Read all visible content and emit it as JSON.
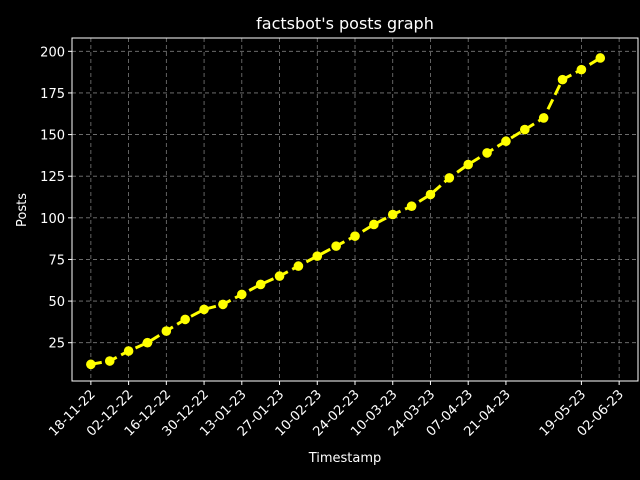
{
  "chart_data": {
    "type": "line",
    "title": "factsbot's posts graph",
    "xlabel": "Timestamp",
    "ylabel": "Posts",
    "grid": true,
    "x_ticks": [
      "18-11-22",
      "02-12-22",
      "16-12-22",
      "30-12-22",
      "13-01-23",
      "27-01-23",
      "10-02-23",
      "24-02-23",
      "10-03-23",
      "24-03-23",
      "07-04-23",
      "21-04-23",
      "19-05-23",
      "02-06-23"
    ],
    "x_range": [
      "2022-11-11",
      "2023-06-09"
    ],
    "ylim": [
      2,
      208
    ],
    "y_ticks": [
      25,
      50,
      75,
      100,
      125,
      150,
      175,
      200
    ],
    "series": [
      {
        "color": "#ffff00",
        "linestyle": "dashed",
        "marker": "circle",
        "points": [
          {
            "x": "2022-11-18",
            "y": 12
          },
          {
            "x": "2022-11-25",
            "y": 14
          },
          {
            "x": "2022-12-02",
            "y": 20
          },
          {
            "x": "2022-12-09",
            "y": 25
          },
          {
            "x": "2022-12-16",
            "y": 32
          },
          {
            "x": "2022-12-23",
            "y": 39
          },
          {
            "x": "2022-12-30",
            "y": 45
          },
          {
            "x": "2023-01-06",
            "y": 48
          },
          {
            "x": "2023-01-13",
            "y": 54
          },
          {
            "x": "2023-01-20",
            "y": 60
          },
          {
            "x": "2023-01-27",
            "y": 65
          },
          {
            "x": "2023-02-03",
            "y": 71
          },
          {
            "x": "2023-02-10",
            "y": 77
          },
          {
            "x": "2023-02-17",
            "y": 83
          },
          {
            "x": "2023-02-24",
            "y": 89
          },
          {
            "x": "2023-03-03",
            "y": 96
          },
          {
            "x": "2023-03-10",
            "y": 102
          },
          {
            "x": "2023-03-17",
            "y": 107
          },
          {
            "x": "2023-03-24",
            "y": 114
          },
          {
            "x": "2023-03-31",
            "y": 124
          },
          {
            "x": "2023-04-07",
            "y": 132
          },
          {
            "x": "2023-04-14",
            "y": 139
          },
          {
            "x": "2023-04-21",
            "y": 146
          },
          {
            "x": "2023-04-28",
            "y": 153
          },
          {
            "x": "2023-05-05",
            "y": 160
          },
          {
            "x": "2023-05-12",
            "y": 183
          },
          {
            "x": "2023-05-19",
            "y": 189
          },
          {
            "x": "2023-05-26",
            "y": 196
          }
        ]
      }
    ]
  },
  "colors": {
    "background": "#000000",
    "foreground": "#ffffff",
    "grid": "#b0b0b0",
    "line": "#ffff00"
  }
}
